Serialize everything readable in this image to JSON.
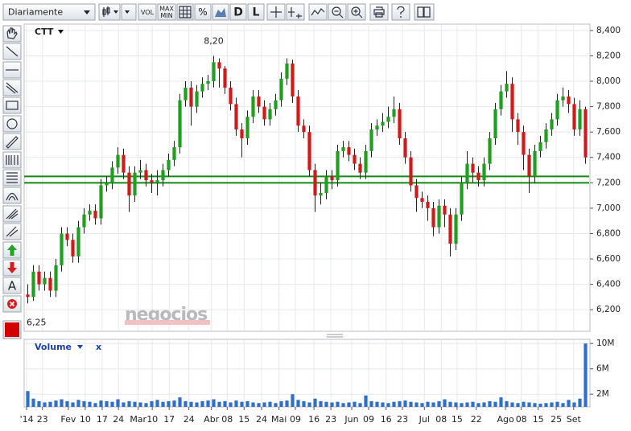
{
  "toolbar": {
    "period": "Diariamente",
    "buttons": [
      "VOL",
      "MAX",
      "MIN",
      "%",
      "D",
      "L"
    ]
  },
  "left_tools": {
    "text_tool": "A"
  },
  "chart_data": {
    "type": "candlestick",
    "title": "CTT",
    "watermark": "negocios",
    "colors": {
      "up": "#1f9e1f",
      "down": "#cf1a1a"
    },
    "candles": [
      [
        6.32,
        6.4,
        6.25,
        6.3
      ],
      [
        6.3,
        6.55,
        6.27,
        6.5
      ],
      [
        6.5,
        6.55,
        6.35,
        6.4
      ],
      [
        6.4,
        6.5,
        6.35,
        6.45
      ],
      [
        6.45,
        6.5,
        6.3,
        6.35
      ],
      [
        6.35,
        6.6,
        6.3,
        6.55
      ],
      [
        6.55,
        6.85,
        6.5,
        6.8
      ],
      [
        6.8,
        6.85,
        6.7,
        6.75
      ],
      [
        6.75,
        6.8,
        6.57,
        6.62
      ],
      [
        6.62,
        6.9,
        6.57,
        6.85
      ],
      [
        6.85,
        7.0,
        6.8,
        6.95
      ],
      [
        6.95,
        7.03,
        6.9,
        6.98
      ],
      [
        6.98,
        7.03,
        6.87,
        6.92
      ],
      [
        6.92,
        7.23,
        6.87,
        7.18
      ],
      [
        7.18,
        7.25,
        7.13,
        7.2
      ],
      [
        7.2,
        7.37,
        7.15,
        7.32
      ],
      [
        7.32,
        7.48,
        7.27,
        7.42
      ],
      [
        7.42,
        7.47,
        7.23,
        7.28
      ],
      [
        7.28,
        7.33,
        6.97,
        7.1
      ],
      [
        7.1,
        7.33,
        7.05,
        7.28
      ],
      [
        7.28,
        7.38,
        7.23,
        7.3
      ],
      [
        7.3,
        7.35,
        7.17,
        7.22
      ],
      [
        7.22,
        7.27,
        7.12,
        7.2
      ],
      [
        7.2,
        7.3,
        7.1,
        7.22
      ],
      [
        7.22,
        7.35,
        7.17,
        7.3
      ],
      [
        7.3,
        7.43,
        7.25,
        7.38
      ],
      [
        7.38,
        7.53,
        7.33,
        7.48
      ],
      [
        7.48,
        7.9,
        7.43,
        7.85
      ],
      [
        7.85,
        8.0,
        7.8,
        7.95
      ],
      [
        7.95,
        8.0,
        7.65,
        7.8
      ],
      [
        7.8,
        7.97,
        7.75,
        7.92
      ],
      [
        7.92,
        8.03,
        7.87,
        7.98
      ],
      [
        7.98,
        8.05,
        7.93,
        8.0
      ],
      [
        8.0,
        8.2,
        7.95,
        8.15
      ],
      [
        8.15,
        8.18,
        7.95,
        8.1
      ],
      [
        8.1,
        8.12,
        7.9,
        7.95
      ],
      [
        7.95,
        8.0,
        7.77,
        7.82
      ],
      [
        7.82,
        7.87,
        7.57,
        7.62
      ],
      [
        7.62,
        7.67,
        7.4,
        7.55
      ],
      [
        7.55,
        7.77,
        7.5,
        7.72
      ],
      [
        7.72,
        7.93,
        7.67,
        7.88
      ],
      [
        7.88,
        7.93,
        7.75,
        7.8
      ],
      [
        7.8,
        7.85,
        7.65,
        7.7
      ],
      [
        7.7,
        7.83,
        7.65,
        7.78
      ],
      [
        7.78,
        7.9,
        7.73,
        7.85
      ],
      [
        7.85,
        8.07,
        7.8,
        8.02
      ],
      [
        8.02,
        8.18,
        7.97,
        8.14
      ],
      [
        8.14,
        8.17,
        7.83,
        7.88
      ],
      [
        7.88,
        7.93,
        7.6,
        7.65
      ],
      [
        7.65,
        7.7,
        7.55,
        7.6
      ],
      [
        7.6,
        7.65,
        7.25,
        7.3
      ],
      [
        7.3,
        7.35,
        6.97,
        7.1
      ],
      [
        7.1,
        7.2,
        7.03,
        7.12
      ],
      [
        7.12,
        7.3,
        7.07,
        7.25
      ],
      [
        7.25,
        7.3,
        7.15,
        7.22
      ],
      [
        7.22,
        7.5,
        7.17,
        7.45
      ],
      [
        7.45,
        7.53,
        7.4,
        7.48
      ],
      [
        7.48,
        7.53,
        7.37,
        7.42
      ],
      [
        7.42,
        7.47,
        7.3,
        7.35
      ],
      [
        7.35,
        7.4,
        7.23,
        7.28
      ],
      [
        7.28,
        7.5,
        7.23,
        7.45
      ],
      [
        7.45,
        7.67,
        7.4,
        7.62
      ],
      [
        7.62,
        7.7,
        7.57,
        7.65
      ],
      [
        7.65,
        7.75,
        7.6,
        7.68
      ],
      [
        7.68,
        7.8,
        7.63,
        7.72
      ],
      [
        7.72,
        7.88,
        7.67,
        7.78
      ],
      [
        7.78,
        7.83,
        7.5,
        7.55
      ],
      [
        7.55,
        7.6,
        7.35,
        7.4
      ],
      [
        7.4,
        7.45,
        7.13,
        7.18
      ],
      [
        7.18,
        7.23,
        6.97,
        7.08
      ],
      [
        7.08,
        7.13,
        7.0,
        7.05
      ],
      [
        7.05,
        7.1,
        6.9,
        7.0
      ],
      [
        7.0,
        7.05,
        6.78,
        6.85
      ],
      [
        6.85,
        7.07,
        6.8,
        7.02
      ],
      [
        7.02,
        7.07,
        6.85,
        6.95
      ],
      [
        6.95,
        7.0,
        6.62,
        6.72
      ],
      [
        6.72,
        7.0,
        6.67,
        6.95
      ],
      [
        6.95,
        7.25,
        6.9,
        7.2
      ],
      [
        7.2,
        7.45,
        7.15,
        7.35
      ],
      [
        7.35,
        7.4,
        7.2,
        7.28
      ],
      [
        7.28,
        7.33,
        7.17,
        7.22
      ],
      [
        7.22,
        7.4,
        7.17,
        7.35
      ],
      [
        7.35,
        7.6,
        7.3,
        7.55
      ],
      [
        7.55,
        7.83,
        7.5,
        7.78
      ],
      [
        7.78,
        7.97,
        7.73,
        7.92
      ],
      [
        7.92,
        8.08,
        7.87,
        7.98
      ],
      [
        7.98,
        8.03,
        7.6,
        7.7
      ],
      [
        7.7,
        7.75,
        7.5,
        7.6
      ],
      [
        7.6,
        7.65,
        7.3,
        7.42
      ],
      [
        7.42,
        7.47,
        7.12,
        7.25
      ],
      [
        7.25,
        7.5,
        7.2,
        7.45
      ],
      [
        7.45,
        7.57,
        7.4,
        7.52
      ],
      [
        7.52,
        7.67,
        7.47,
        7.62
      ],
      [
        7.62,
        7.75,
        7.57,
        7.7
      ],
      [
        7.7,
        7.9,
        7.65,
        7.85
      ],
      [
        7.85,
        7.95,
        7.8,
        7.88
      ],
      [
        7.88,
        7.93,
        7.75,
        7.82
      ],
      [
        7.82,
        7.87,
        7.57,
        7.62
      ],
      [
        7.62,
        7.85,
        7.57,
        7.78
      ],
      [
        7.78,
        7.8,
        7.35,
        7.4
      ]
    ],
    "xlim": [
      -0.5,
      99.5
    ],
    "xticks": [
      {
        "value": -0.2,
        "label": "'14"
      },
      {
        "value": 2.6,
        "label": "23"
      },
      {
        "value": 7.2,
        "label": "Fev"
      },
      {
        "value": 10.2,
        "label": "10"
      },
      {
        "value": 13.2,
        "label": "17"
      },
      {
        "value": 16.1,
        "label": "24"
      },
      {
        "value": 19.6,
        "label": "Mar"
      },
      {
        "value": 22.1,
        "label": "10"
      },
      {
        "value": 25.1,
        "label": "17"
      },
      {
        "value": 28.6,
        "label": "24"
      },
      {
        "value": 32.6,
        "label": "Abr"
      },
      {
        "value": 35.4,
        "label": "08"
      },
      {
        "value": 38.4,
        "label": "15"
      },
      {
        "value": 41.5,
        "label": "24"
      },
      {
        "value": 44.6,
        "label": "Mai"
      },
      {
        "value": 47.5,
        "label": "09"
      },
      {
        "value": 50.8,
        "label": "16"
      },
      {
        "value": 53.8,
        "label": "23"
      },
      {
        "value": 57.5,
        "label": "Jun"
      },
      {
        "value": 60.5,
        "label": "09"
      },
      {
        "value": 63.6,
        "label": "16"
      },
      {
        "value": 66.5,
        "label": "23"
      },
      {
        "value": 70.4,
        "label": "Jul"
      },
      {
        "value": 73.4,
        "label": "08"
      },
      {
        "value": 76.2,
        "label": "15"
      },
      {
        "value": 79.6,
        "label": "22"
      },
      {
        "value": 84.8,
        "label": "Ago"
      },
      {
        "value": 87.6,
        "label": "08"
      },
      {
        "value": 90.6,
        "label": "15"
      },
      {
        "value": 93.8,
        "label": "25"
      },
      {
        "value": 96.9,
        "label": "Set"
      }
    ],
    "ylim": [
      6.03,
      8.45
    ],
    "yticks": [
      {
        "value": 6.2,
        "label": "6,200"
      },
      {
        "value": 6.4,
        "label": "6,400"
      },
      {
        "value": 6.6,
        "label": "6,600"
      },
      {
        "value": 6.8,
        "label": "6,800"
      },
      {
        "value": 7.0,
        "label": "7,000"
      },
      {
        "value": 7.2,
        "label": "7,200"
      },
      {
        "value": 7.4,
        "label": "7,400"
      },
      {
        "value": 7.6,
        "label": "7,600"
      },
      {
        "value": 7.8,
        "label": "7,800"
      },
      {
        "value": 8.0,
        "label": "8,000"
      },
      {
        "value": 8.2,
        "label": "8,200"
      },
      {
        "value": 8.4,
        "label": "8,400"
      }
    ],
    "grid": true,
    "hlines": {
      "values": [
        7.25,
        7.2
      ],
      "color": "#138a13"
    },
    "annotations": [
      {
        "value": 8.2,
        "label": "8,20"
      },
      {
        "value": 6.25,
        "label": "6,25"
      }
    ],
    "volume": {
      "title": "Volume",
      "close": "x",
      "color": "#2f6fc6",
      "values": [
        2500000,
        1300000,
        900000,
        700000,
        800000,
        1000000,
        1200000,
        900000,
        700000,
        1100000,
        900000,
        800000,
        600000,
        1000000,
        900000,
        800000,
        1200000,
        700000,
        900000,
        800000,
        700000,
        600000,
        900000,
        1100000,
        800000,
        900000,
        1000000,
        1500000,
        900000,
        800000,
        700000,
        900000,
        1000000,
        1200000,
        800000,
        900000,
        700000,
        1000000,
        800000,
        900000,
        700000,
        600000,
        700000,
        800000,
        600000,
        900000,
        1000000,
        2000000,
        1100000,
        900000,
        700000,
        1300000,
        900000,
        800000,
        700000,
        800000,
        600000,
        700000,
        800000,
        600000,
        1800000,
        900000,
        800000,
        700000,
        600000,
        800000,
        900000,
        1000000,
        800000,
        700000,
        600000,
        800000,
        700000,
        900000,
        1200000,
        800000,
        700000,
        600000,
        700000,
        800000,
        600000,
        700000,
        900000,
        800000,
        1500000,
        900000,
        700000,
        600000,
        800000,
        700000,
        600000,
        500000,
        600000,
        700000,
        800000,
        600000,
        1100000,
        700000,
        1300000,
        10000000
      ],
      "ylim": [
        0,
        10400000
      ],
      "yticks": [
        {
          "value": 2000000,
          "label": "2M"
        },
        {
          "value": 6000000,
          "label": "6M"
        },
        {
          "value": 10000000,
          "label": "10M"
        }
      ]
    }
  }
}
